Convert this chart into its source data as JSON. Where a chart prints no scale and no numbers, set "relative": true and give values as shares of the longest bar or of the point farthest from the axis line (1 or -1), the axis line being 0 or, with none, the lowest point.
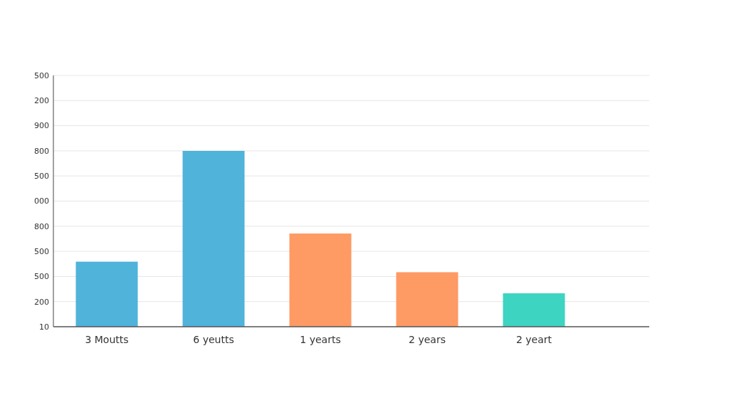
{
  "chart_data": {
    "type": "bar",
    "categories": [
      "3 Moutts",
      "6 yeutts",
      "1 yearts",
      "2 years",
      "2 yeart"
    ],
    "values": [
      0.37,
      1,
      0.53,
      0.31,
      0.19
    ],
    "colors": [
      "#4fb3da",
      "#4fb3da",
      "#fe9a64",
      "#fe9a64",
      "#3dd4c2"
    ],
    "relative": true,
    "annotations": [
      "10",
      "200",
      "500",
      "500",
      "800",
      "000",
      "500",
      "800",
      "900",
      "200",
      "500"
    ],
    "grid": "y"
  }
}
